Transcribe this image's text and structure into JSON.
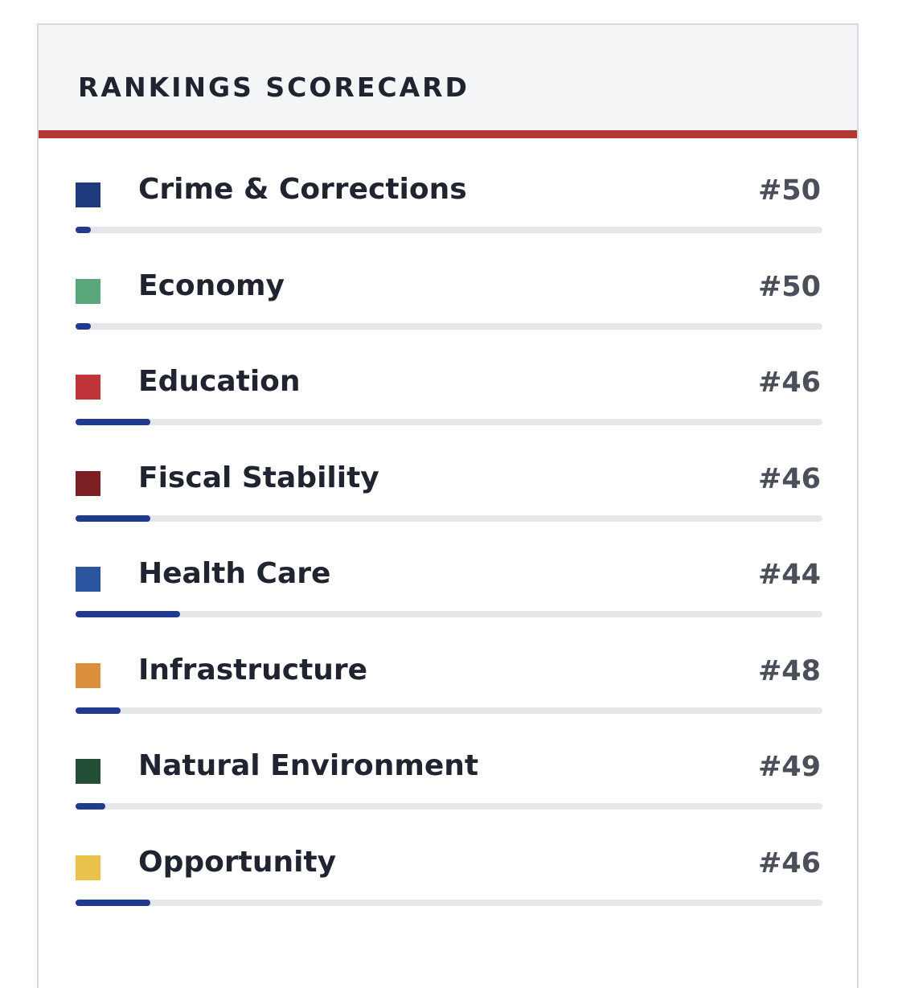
{
  "header": {
    "title": "RANKINGS SCORECARD"
  },
  "rank_lim": [
    51,
    1
  ],
  "items": [
    {
      "label": "Crime & Corrections",
      "color": "#1d3b7c",
      "rank": 50,
      "rank_label": "#50"
    },
    {
      "label": "Economy",
      "color": "#5aa67b",
      "rank": 50,
      "rank_label": "#50"
    },
    {
      "label": "Education",
      "color": "#c0353a",
      "rank": 46,
      "rank_label": "#46"
    },
    {
      "label": "Fiscal Stability",
      "color": "#7b1f22",
      "rank": 46,
      "rank_label": "#46"
    },
    {
      "label": "Health Care",
      "color": "#2b559f",
      "rank": 44,
      "rank_label": "#44"
    },
    {
      "label": "Infrastructure",
      "color": "#d98f3b",
      "rank": 48,
      "rank_label": "#48"
    },
    {
      "label": "Natural Environment",
      "color": "#234f37",
      "rank": 49,
      "rank_label": "#49"
    },
    {
      "label": "Opportunity",
      "color": "#e8c24b",
      "rank": 46,
      "rank_label": "#46"
    }
  ]
}
